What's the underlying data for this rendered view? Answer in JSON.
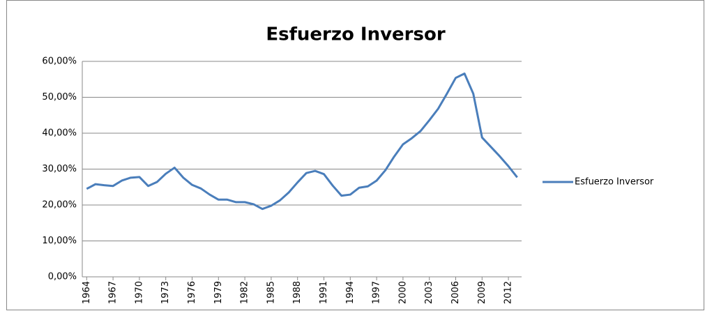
{
  "chart_data": {
    "type": "line",
    "title": "Esfuerzo Inversor",
    "x": [
      1964,
      1965,
      1966,
      1967,
      1968,
      1969,
      1970,
      1971,
      1972,
      1973,
      1974,
      1975,
      1976,
      1977,
      1978,
      1979,
      1980,
      1981,
      1982,
      1983,
      1984,
      1985,
      1986,
      1987,
      1988,
      1989,
      1990,
      1991,
      1992,
      1993,
      1994,
      1995,
      1996,
      1997,
      1998,
      1999,
      2000,
      2001,
      2002,
      2003,
      2004,
      2005,
      2006,
      2007,
      2008,
      2009,
      2010,
      2011,
      2012,
      2013
    ],
    "series": [
      {
        "name": "Esfuerzo Inversor",
        "color": "#4a7ebb",
        "values": [
          24.5,
          25.8,
          25.5,
          25.3,
          26.8,
          27.6,
          27.8,
          25.3,
          26.4,
          28.7,
          30.4,
          27.6,
          25.6,
          24.6,
          22.9,
          21.5,
          21.5,
          20.8,
          20.8,
          20.2,
          18.9,
          19.8,
          21.3,
          23.5,
          26.3,
          28.9,
          29.5,
          28.6,
          25.4,
          22.6,
          22.9,
          24.8,
          25.2,
          26.8,
          29.7,
          33.5,
          36.9,
          38.6,
          40.6,
          43.6,
          46.8,
          51.0,
          55.4,
          56.6,
          51.0,
          38.8,
          36.2,
          33.6,
          30.8,
          27.7
        ]
      }
    ],
    "xlim": [
      1963.5,
      2013.5
    ],
    "xticks": [
      1964,
      1967,
      1970,
      1973,
      1976,
      1979,
      1982,
      1985,
      1988,
      1991,
      1994,
      1997,
      2000,
      2003,
      2006,
      2009,
      2012
    ],
    "ylim": [
      0,
      60
    ],
    "yticks": [
      {
        "value": 0,
        "label": "0,00%"
      },
      {
        "value": 10,
        "label": "10,00%"
      },
      {
        "value": 20,
        "label": "20,00%"
      },
      {
        "value": 30,
        "label": "30,00%"
      },
      {
        "value": 40,
        "label": "40,00%"
      },
      {
        "value": 50,
        "label": "50,00%"
      },
      {
        "value": 60,
        "label": "60,00%"
      }
    ],
    "grid": true,
    "legend": "right"
  }
}
